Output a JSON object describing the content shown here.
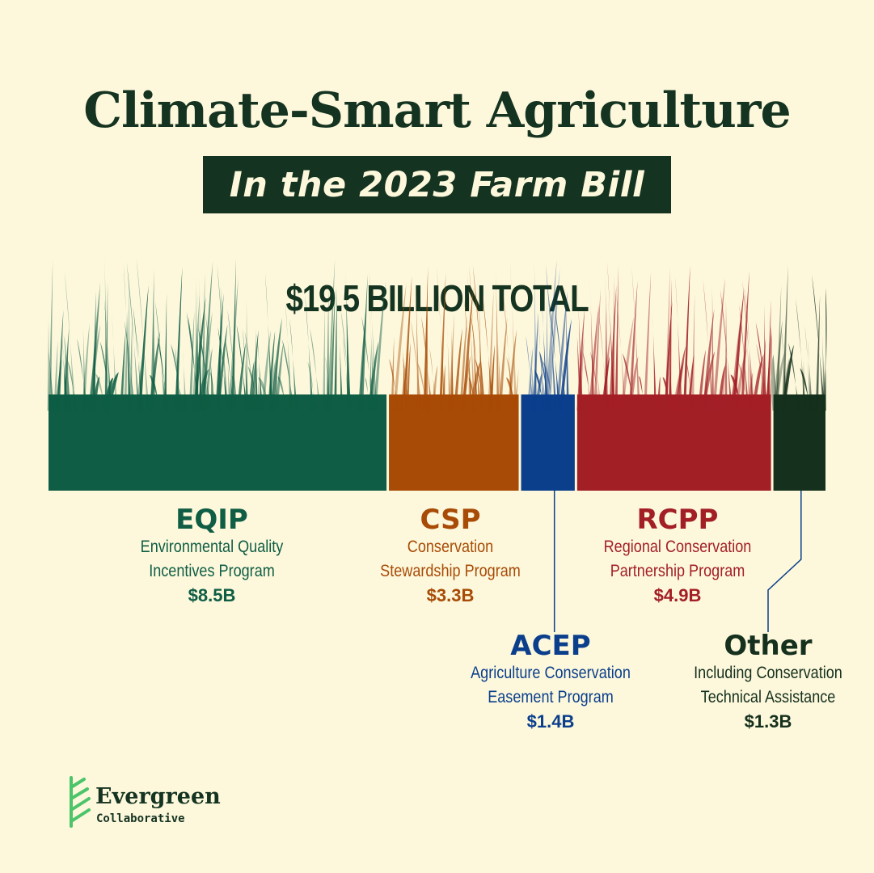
{
  "header": {
    "title": "Climate-Smart Agriculture",
    "subtitle": "In the 2023 Farm Bill"
  },
  "chart_data": {
    "type": "bar",
    "orientation": "stacked-horizontal",
    "title": "$19.5 BILLION TOTAL",
    "total": 19.5,
    "unit": "$B",
    "categories": [
      "EQIP",
      "CSP",
      "ACEP",
      "RCPP",
      "Other"
    ],
    "values": [
      8.5,
      3.3,
      1.4,
      4.9,
      1.3
    ],
    "colors": [
      "#0e5d44",
      "#a84b06",
      "#0b3f8c",
      "#a31f26",
      "#15301d"
    ],
    "segments": [
      {
        "code": "EQIP",
        "name_line1": "Environmental Quality",
        "name_line2": "Incentives Program",
        "amount": "$8.5B",
        "color": "#0e5d44"
      },
      {
        "code": "CSP",
        "name_line1": "Conservation",
        "name_line2": "Stewardship Program",
        "amount": "$3.3B",
        "color": "#a84b06"
      },
      {
        "code": "ACEP",
        "name_line1": "Agriculture Conservation",
        "name_line2": "Easement Program",
        "amount": "$1.4B",
        "color": "#0b3f8c"
      },
      {
        "code": "RCPP",
        "name_line1": "Regional Conservation",
        "name_line2": "Partnership Program",
        "amount": "$4.9B",
        "color": "#a31f26"
      },
      {
        "code": "Other",
        "name_line1": "Including Conservation",
        "name_line2": "Technical Assistance",
        "amount": "$1.3B",
        "color": "#15301d"
      }
    ]
  },
  "footer": {
    "brand": "Evergreen",
    "brand_sub": "Collaborative",
    "brand_color": "#4cc46a",
    "icon": "evergreen-tree-logo-icon"
  }
}
